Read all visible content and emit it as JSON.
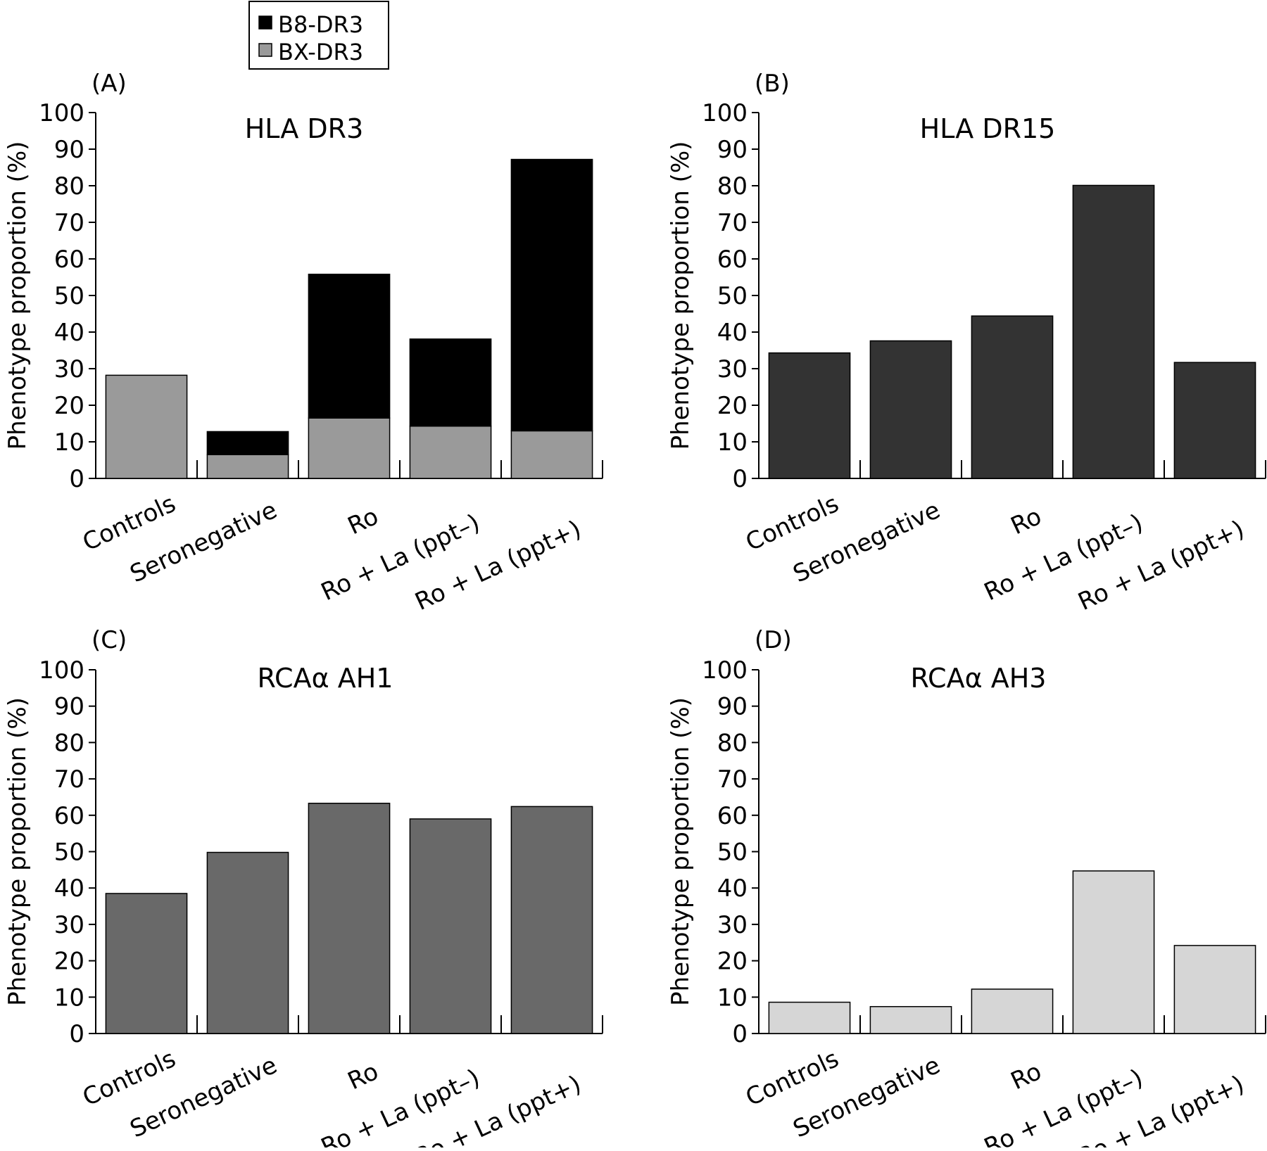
{
  "legend": {
    "items": [
      {
        "label": "B8-DR3",
        "color": "#000000"
      },
      {
        "label": "BX-DR3",
        "color": "#9a9a9a"
      }
    ]
  },
  "chart_data": [
    {
      "type": "bar",
      "stacked": true,
      "panel": "(A)",
      "title": "HLA DR3",
      "ylabel": "Phenotype proportion (%)",
      "xlabel": "",
      "ylim": [
        0,
        100
      ],
      "yticks": [
        0,
        10,
        20,
        30,
        40,
        50,
        60,
        70,
        80,
        90,
        100
      ],
      "categories": [
        "Controls",
        "Seronegative",
        "Ro",
        "Ro + La (ppt–)",
        "Ro + La (ppt+)"
      ],
      "series": [
        {
          "name": "BX-DR3",
          "color": "#9a9a9a",
          "values": [
            28.2,
            6.5,
            16.5,
            14.3,
            13.0
          ]
        },
        {
          "name": "B8-DR3",
          "color": "#000000",
          "values": [
            0,
            6.3,
            39.3,
            23.8,
            74.2
          ]
        }
      ]
    },
    {
      "type": "bar",
      "panel": "(B)",
      "title": "HLA DR15",
      "ylabel": "Phenotype proportion (%)",
      "xlabel": "",
      "ylim": [
        0,
        100
      ],
      "yticks": [
        0,
        10,
        20,
        30,
        40,
        50,
        60,
        70,
        80,
        90,
        100
      ],
      "categories": [
        "Controls",
        "Seronegative",
        "Ro",
        "Ro + La (ppt–)",
        "Ro + La (ppt+)"
      ],
      "series": [
        {
          "color": "#333333",
          "values": [
            34.3,
            37.6,
            44.4,
            80.1,
            31.7
          ]
        }
      ]
    },
    {
      "type": "bar",
      "panel": "(C)",
      "title": "RCAα AH1",
      "ylabel": "Phenotype proportion (%)",
      "xlabel": "",
      "ylim": [
        0,
        100
      ],
      "yticks": [
        0,
        10,
        20,
        30,
        40,
        50,
        60,
        70,
        80,
        90,
        100
      ],
      "categories": [
        "Controls",
        "Seronegative",
        "Ro",
        "Ro + La (ppt–)",
        "Ro + La (ppt+)"
      ],
      "series": [
        {
          "color": "#696969",
          "values": [
            38.5,
            49.8,
            63.3,
            59.0,
            62.4
          ]
        }
      ]
    },
    {
      "type": "bar",
      "panel": "(D)",
      "title": "RCAα AH3",
      "ylabel": "Phenotype proportion (%)",
      "xlabel": "",
      "ylim": [
        0,
        100
      ],
      "yticks": [
        0,
        10,
        20,
        30,
        40,
        50,
        60,
        70,
        80,
        90,
        100
      ],
      "categories": [
        "Controls",
        "Seronegative",
        "Ro",
        "Ro + La (ppt–)",
        "Ro + La (ppt+)"
      ],
      "series": [
        {
          "color": "#d6d6d6",
          "values": [
            8.6,
            7.4,
            12.2,
            44.7,
            24.2
          ]
        }
      ]
    }
  ]
}
